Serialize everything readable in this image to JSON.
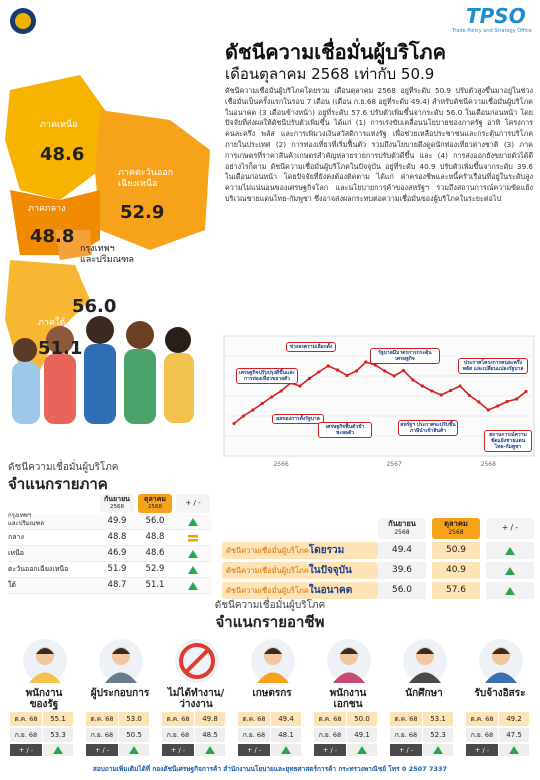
{
  "header": {
    "logo_text": "TPSO",
    "logo_sub": "Trade Policy and Strategy Office"
  },
  "title": "ดัชนีความเชื่อมั่นผู้บริโภค",
  "subtitle": "เดือนตุลาคม 2568 เท่ากับ 50.9",
  "summary": "ดัชนีความเชื่อมั่นผู้บริโภคโดยรวม เดือนตุลาคม 2568 อยู่ที่ระดับ 50.9 ปรับตัวสูงขึ้นมาอยู่ในช่วงเชื่อมั่นเป็นครั้งแรกในรอบ 7 เดือน (เดือน ก.ย.68 อยู่ที่ระดับ 49.4) สำหรับดัชนีความเชื่อมั่นผู้บริโภคในอนาคต (3 เดือนข้างหน้า) อยู่ที่ระดับ 57.6 ปรับตัวเพิ่มขึ้นจากระดับ 56.0 ในเดือนก่อนหน้า โดยปัจจัยที่ส่งผลให้ดัชนีปรับตัวเพิ่มขึ้น ได้แก่ (1) การเร่งขับเคลื่อนนโยบายของภาครัฐ อาทิ โครงการคนละครึ่ง พลัส และการเพิ่มวงเงินสวัสดิการแห่งรัฐ เพื่อช่วยเหลือประชาชนและกระตุ้นการบริโภคภายในประเทศ (2) การท่องเที่ยวที่เริ่มฟื้นตัว รวมถึงนโยบายดึงดูดนักท่องเที่ยวต่างชาติ (3) ภาคการเกษตรที่ราคาสินค้าเกษตรสำคัญหลายรายการปรับตัวดีขึ้น และ (4) การส่งออกยังขยายตัวได้ดี อย่างไรก็ตาม ดัชนีความเชื่อมั่นผู้บริโภคในปัจจุบัน อยู่ที่ระดับ 40.9 ปรับตัวเพิ่มขึ้นจากระดับ 39.6 ในเดือนก่อนหน้า โดยปัจจัยที่ยังคงต้องติดตาม ได้แก่ ค่าครองชีพและหนี้ครัวเรือนที่อยู่ในระดับสูง ความไม่แน่นอนของเศรษฐกิจโลก และนโยบายการค้าของสหรัฐฯ รวมถึงสถานการณ์ความขัดแย้งบริเวณชายแดนไทย-กัมพูชา ซึ่งอาจส่งผลกระทบต่อความเชื่อมั่นของผู้บริโภคในระยะต่อไป",
  "regions_map": [
    {
      "name": "ภาคเหนือ",
      "value": "48.6"
    },
    {
      "name": "ภาคตะวันออก\nเฉียงเหนือ",
      "value": "52.9"
    },
    {
      "name": "ภาคกลาง",
      "value": "48.8"
    },
    {
      "name": "กรุงเทพฯ\nและปริมณฑล",
      "value": "56.0"
    },
    {
      "name": "ภาคใต้",
      "value": "51.1"
    }
  ],
  "chart_data": {
    "type": "line",
    "color": "#d42020",
    "categories": [
      null,
      null,
      null,
      null,
      null,
      "2566",
      null,
      null,
      null,
      null,
      null,
      null,
      null,
      null,
      null,
      null,
      null,
      "2567",
      null,
      null,
      null,
      null,
      null,
      null,
      null,
      null,
      null,
      "2568",
      null,
      null,
      null,
      null
    ],
    "values": [
      44.5,
      46.0,
      47.2,
      48.5,
      49.8,
      51.0,
      52.6,
      52.0,
      53.5,
      54.8,
      56.0,
      55.2,
      54.1,
      55.0,
      56.8,
      56.2,
      55.0,
      54.0,
      55.1,
      53.2,
      52.0,
      51.0,
      50.2,
      51.1,
      52.0,
      50.1,
      48.8,
      47.2,
      48.0,
      48.9,
      49.4,
      50.9
    ],
    "ylim": [
      40,
      60
    ],
    "annotations": [
      "เศรษฐกิจปรับปรุงดีขึ้นและการท่องเที่ยวขยายตัว",
      "ช่วงสงครามเลือกตั้ง",
      "รัฐบาลมีมาตรการกระตุ้นเศรษฐกิจ",
      "ประกาศโครงการคนละครึ่ง พลัส และเปลี่ยนแปลงรัฐบาล",
      "ผลของการตั้งรัฐบาล",
      "เศรษฐกิจฟื้นตัวช้าชะลอตัว",
      "สหรัฐฯ ประกาศจะปรับขึ้นภาษีนำเข้าสินค้า",
      "สถานการณ์ความขัดแย้งชายแดนไทย-กัมพูชา"
    ]
  },
  "region_table": {
    "heading": "ดัชนีความเชื่อมั่นผู้บริโภค",
    "title": "จำแนกรายภาค",
    "columns": [
      {
        "label": "กันยายน",
        "sub": "2568"
      },
      {
        "label": "ตุลาคม",
        "sub": "2568"
      },
      "+ / -"
    ],
    "rows": [
      {
        "name": "กรุงเทพฯ\nและปริมณฑล",
        "values": [
          "49.9",
          "56.0"
        ],
        "trend": "up"
      },
      {
        "name": "กลาง",
        "values": [
          "48.8",
          "48.8"
        ],
        "trend": "equal"
      },
      {
        "name": "เหนือ",
        "values": [
          "46.9",
          "48.6"
        ],
        "trend": "up"
      },
      {
        "name": "ตะวันออกเฉียงเหนือ",
        "values": [
          "51.9",
          "52.9"
        ],
        "trend": "up"
      },
      {
        "name": "ใต้",
        "values": [
          "48.7",
          "51.1"
        ],
        "trend": "up"
      }
    ]
  },
  "overall_table": {
    "columns": [
      {
        "label": "กันยายน",
        "sub": "2568"
      },
      {
        "label": "ตุลาคม",
        "sub": "2568"
      },
      "+ / -"
    ],
    "rows": [
      {
        "prefix": "ดัชนีความเชื่อมั่นผู้บริโภค",
        "name": "โดยรวม",
        "values": [
          "49.4",
          "50.9"
        ],
        "trend": "up"
      },
      {
        "prefix": "ดัชนีความเชื่อมั่นผู้บริโภค",
        "name": "ในปัจจุบัน",
        "values": [
          "39.6",
          "40.9"
        ],
        "trend": "up"
      },
      {
        "prefix": "ดัชนีความเชื่อมั่นผู้บริโภค",
        "name": "ในอนาคต",
        "values": [
          "56.0",
          "57.6"
        ],
        "trend": "up"
      }
    ]
  },
  "occupation": {
    "heading": "ดัชนีความเชื่อมั่นผู้บริโภค",
    "title": "จำแนกรายอาชีพ",
    "month_labels": [
      "ต.ค. 68",
      "ก.ย. 68"
    ],
    "change_label": "+ / -",
    "groups": [
      {
        "name": "พนักงาน\nของรัฐ",
        "values": [
          "55.1",
          "53.3"
        ],
        "trend": "up"
      },
      {
        "name": "ผู้ประกอบการ",
        "values": [
          "53.0",
          "50.5"
        ],
        "trend": "up"
      },
      {
        "name": "ไม่ได้ทำงาน/\nว่างงาน",
        "values": [
          "49.8",
          "48.5"
        ],
        "trend": "up"
      },
      {
        "name": "เกษตรกร",
        "values": [
          "49.4",
          "48.1"
        ],
        "trend": "up"
      },
      {
        "name": "พนักงาน\nเอกชน",
        "values": [
          "50.0",
          "49.1"
        ],
        "trend": "up"
      },
      {
        "name": "นักศึกษา",
        "values": [
          "53.1",
          "52.3"
        ],
        "trend": "up"
      },
      {
        "name": "รับจ้างอิสระ",
        "values": [
          "49.2",
          "47.5"
        ],
        "trend": "up"
      }
    ]
  },
  "footer": "สอบถามเพิ่มเติมได้ที่ กองดัชนีเศรษฐกิจการค้า สำนักงานนโยบายและยุทธศาสตร์การค้า กระทรวงพาณิชย์ โทร 0 2507 7337"
}
